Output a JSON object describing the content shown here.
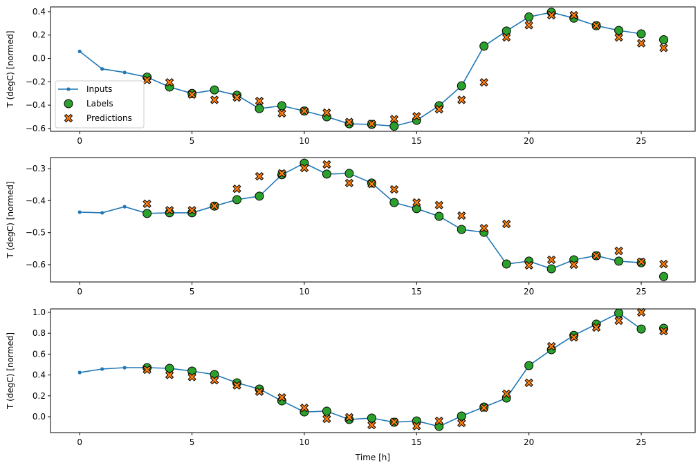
{
  "chart_data": [
    {
      "type": "line",
      "ylabel": "T (degC) [normed]",
      "xlabel": "",
      "xlim": [
        -1.3,
        27.4
      ],
      "ylim": [
        -0.624,
        0.441
      ],
      "xticks": [
        0,
        5,
        10,
        15,
        20,
        25
      ],
      "yticks": [
        -0.6,
        -0.4,
        -0.2,
        0.0,
        0.2,
        0.4
      ],
      "ytick_labels": [
        "−0.6",
        "−0.4",
        "−0.2",
        "0.0",
        "0.2",
        "0.4"
      ],
      "grid": false,
      "legend": {
        "placement": "lower-left",
        "entries": [
          "Inputs",
          "Labels",
          "Predictions"
        ]
      },
      "series": [
        {
          "name": "Inputs",
          "kind": "line",
          "color": "#1f77b4",
          "x": [
            0,
            1,
            2,
            3,
            4,
            5,
            6,
            7,
            8,
            9,
            10,
            11,
            12,
            13,
            14,
            15,
            16,
            17,
            18,
            19,
            20,
            21,
            22,
            23,
            24,
            25
          ],
          "values": [
            0.06,
            -0.09,
            -0.12,
            -0.16,
            -0.245,
            -0.3,
            -0.27,
            -0.315,
            -0.43,
            -0.405,
            -0.45,
            -0.5,
            -0.56,
            -0.565,
            -0.58,
            -0.53,
            -0.405,
            -0.235,
            0.105,
            0.235,
            0.355,
            0.395,
            0.345,
            0.28,
            0.24,
            0.21
          ]
        },
        {
          "name": "Labels",
          "kind": "scatter",
          "color": "#2ca02c",
          "x": [
            3,
            4,
            5,
            6,
            7,
            8,
            9,
            10,
            11,
            12,
            13,
            14,
            15,
            16,
            17,
            18,
            19,
            20,
            21,
            22,
            23,
            24,
            25,
            26
          ],
          "values": [
            -0.16,
            -0.245,
            -0.3,
            -0.27,
            -0.315,
            -0.43,
            -0.405,
            -0.45,
            -0.5,
            -0.56,
            -0.565,
            -0.58,
            -0.53,
            -0.405,
            -0.235,
            0.105,
            0.235,
            0.355,
            0.395,
            0.345,
            0.28,
            0.24,
            0.21,
            0.16
          ]
        },
        {
          "name": "Predictions",
          "kind": "scatter",
          "color": "#ff7f0e",
          "x": [
            3,
            4,
            5,
            6,
            7,
            8,
            9,
            10,
            11,
            12,
            13,
            14,
            15,
            16,
            17,
            18,
            19,
            20,
            21,
            22,
            23,
            24,
            25,
            26
          ],
          "values": [
            -0.185,
            -0.205,
            -0.31,
            -0.355,
            -0.335,
            -0.365,
            -0.47,
            -0.45,
            -0.465,
            -0.545,
            -0.56,
            -0.52,
            -0.495,
            -0.435,
            -0.355,
            -0.205,
            0.18,
            0.285,
            0.37,
            0.37,
            0.28,
            0.18,
            0.13,
            0.09
          ]
        }
      ]
    },
    {
      "type": "line",
      "ylabel": "T (degC) [normed]",
      "xlabel": "",
      "xlim": [
        -1.3,
        27.4
      ],
      "ylim": [
        -0.654,
        -0.2655
      ],
      "xticks": [
        0,
        5,
        10,
        15,
        20,
        25
      ],
      "yticks": [
        -0.6,
        -0.5,
        -0.4,
        -0.3
      ],
      "ytick_labels": [
        "−0.6",
        "−0.5",
        "−0.4",
        "−0.3"
      ],
      "grid": false,
      "series": [
        {
          "name": "Inputs",
          "kind": "line",
          "color": "#1f77b4",
          "x": [
            0,
            1,
            2,
            3,
            4,
            5,
            6,
            7,
            8,
            9,
            10,
            11,
            12,
            13,
            14,
            15,
            16,
            17,
            18,
            19,
            20,
            21,
            22,
            23,
            24,
            25
          ],
          "values": [
            -0.436,
            -0.438,
            -0.419,
            -0.44,
            -0.438,
            -0.438,
            -0.417,
            -0.397,
            -0.386,
            -0.319,
            -0.283,
            -0.317,
            -0.315,
            -0.345,
            -0.406,
            -0.425,
            -0.449,
            -0.49,
            -0.499,
            -0.598,
            -0.589,
            -0.613,
            -0.585,
            -0.572,
            -0.589,
            -0.594
          ]
        },
        {
          "name": "Labels",
          "kind": "scatter",
          "color": "#2ca02c",
          "x": [
            3,
            4,
            5,
            6,
            7,
            8,
            9,
            10,
            11,
            12,
            13,
            14,
            15,
            16,
            17,
            18,
            19,
            20,
            21,
            22,
            23,
            24,
            25,
            26
          ],
          "values": [
            -0.44,
            -0.438,
            -0.438,
            -0.417,
            -0.397,
            -0.386,
            -0.319,
            -0.283,
            -0.317,
            -0.315,
            -0.345,
            -0.406,
            -0.425,
            -0.449,
            -0.49,
            -0.499,
            -0.598,
            -0.589,
            -0.613,
            -0.585,
            -0.572,
            -0.589,
            -0.594,
            -0.637
          ]
        },
        {
          "name": "Predictions",
          "kind": "scatter",
          "color": "#ff7f0e",
          "x": [
            3,
            4,
            5,
            6,
            7,
            8,
            9,
            10,
            11,
            12,
            13,
            14,
            15,
            16,
            17,
            18,
            19,
            20,
            21,
            22,
            23,
            24,
            25,
            26
          ],
          "values": [
            -0.41,
            -0.43,
            -0.43,
            -0.417,
            -0.363,
            -0.324,
            -0.315,
            -0.298,
            -0.287,
            -0.345,
            -0.348,
            -0.365,
            -0.406,
            -0.414,
            -0.447,
            -0.486,
            -0.473,
            -0.602,
            -0.585,
            -0.6,
            -0.572,
            -0.557,
            -0.591,
            -0.598
          ]
        }
      ]
    },
    {
      "type": "line",
      "ylabel": "T (degC) [normed]",
      "xlabel": "Time [h]",
      "xlim": [
        -1.3,
        27.4
      ],
      "ylim": [
        -0.152,
        1.033
      ],
      "xticks": [
        0,
        5,
        10,
        15,
        20,
        25
      ],
      "yticks": [
        0.0,
        0.2,
        0.4,
        0.6,
        0.8,
        1.0
      ],
      "ytick_labels": [
        "0.0",
        "0.2",
        "0.4",
        "0.6",
        "0.8",
        "1.0"
      ],
      "grid": false,
      "series": [
        {
          "name": "Inputs",
          "kind": "line",
          "color": "#1f77b4",
          "x": [
            0,
            1,
            2,
            3,
            4,
            5,
            6,
            7,
            8,
            9,
            10,
            11,
            12,
            13,
            14,
            15,
            16,
            17,
            18,
            19,
            20,
            21,
            22,
            23,
            24,
            25
          ],
          "values": [
            0.424,
            0.457,
            0.47,
            0.47,
            0.464,
            0.437,
            0.404,
            0.325,
            0.265,
            0.152,
            0.046,
            0.053,
            -0.026,
            -0.013,
            -0.053,
            -0.04,
            -0.093,
            0.007,
            0.093,
            0.179,
            0.49,
            0.642,
            0.78,
            0.887,
            0.993,
            0.84
          ]
        },
        {
          "name": "Labels",
          "kind": "scatter",
          "color": "#2ca02c",
          "x": [
            3,
            4,
            5,
            6,
            7,
            8,
            9,
            10,
            11,
            12,
            13,
            14,
            15,
            16,
            17,
            18,
            19,
            20,
            21,
            22,
            23,
            24,
            25,
            26
          ],
          "values": [
            0.47,
            0.464,
            0.437,
            0.404,
            0.325,
            0.265,
            0.152,
            0.046,
            0.053,
            -0.026,
            -0.013,
            -0.053,
            -0.04,
            -0.093,
            0.007,
            0.093,
            0.179,
            0.49,
            0.642,
            0.78,
            0.887,
            0.993,
            0.84,
            0.848
          ]
        },
        {
          "name": "Predictions",
          "kind": "scatter",
          "color": "#ff7f0e",
          "x": [
            3,
            4,
            5,
            6,
            7,
            8,
            9,
            10,
            11,
            12,
            13,
            14,
            15,
            16,
            17,
            18,
            19,
            20,
            21,
            22,
            23,
            24,
            25,
            26
          ],
          "values": [
            0.45,
            0.4,
            0.38,
            0.35,
            0.3,
            0.24,
            0.185,
            0.085,
            -0.02,
            -0.005,
            -0.08,
            -0.05,
            -0.09,
            -0.04,
            -0.06,
            0.085,
            0.22,
            0.325,
            0.675,
            0.76,
            0.855,
            0.92,
            1.0,
            0.82
          ]
        }
      ]
    }
  ]
}
